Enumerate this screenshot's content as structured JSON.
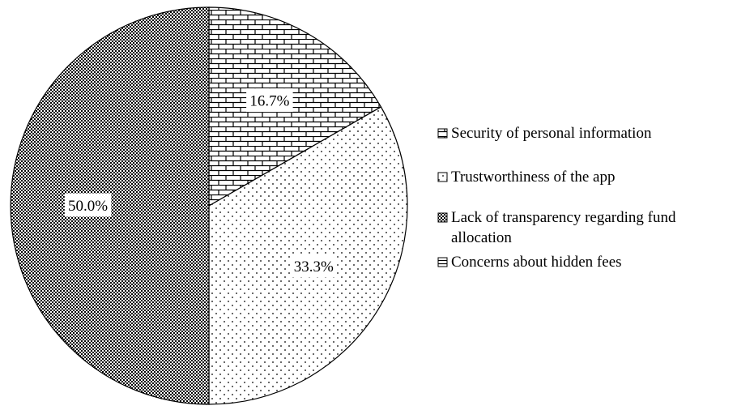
{
  "chart_data": {
    "type": "pie",
    "title": "",
    "slices": [
      {
        "label": "Security of personal information",
        "value": 16.7,
        "display": "16.7%",
        "pattern": "brick"
      },
      {
        "label": "Trustworthiness of the app",
        "value": 33.3,
        "display": "33.3%",
        "pattern": "sparse-dots"
      },
      {
        "label": "Lack of transparency regarding fund allocation",
        "value": 50.0,
        "display": "50.0%",
        "pattern": "dense-checker"
      },
      {
        "label": "Concerns about hidden fees",
        "value": 0,
        "display": "",
        "pattern": "horizontal-lines"
      }
    ],
    "legend": {
      "position": "right",
      "items": [
        {
          "line1": "Security of personal information",
          "line2": ""
        },
        {
          "line1": "Trustworthiness of the app",
          "line2": ""
        },
        {
          "line1": "Lack of transparency regarding fund",
          "line2": "allocation"
        },
        {
          "line1": "Concerns about hidden fees",
          "line2": ""
        }
      ]
    },
    "colors": {
      "fill": "#ffffff",
      "ink": "#000000"
    }
  }
}
